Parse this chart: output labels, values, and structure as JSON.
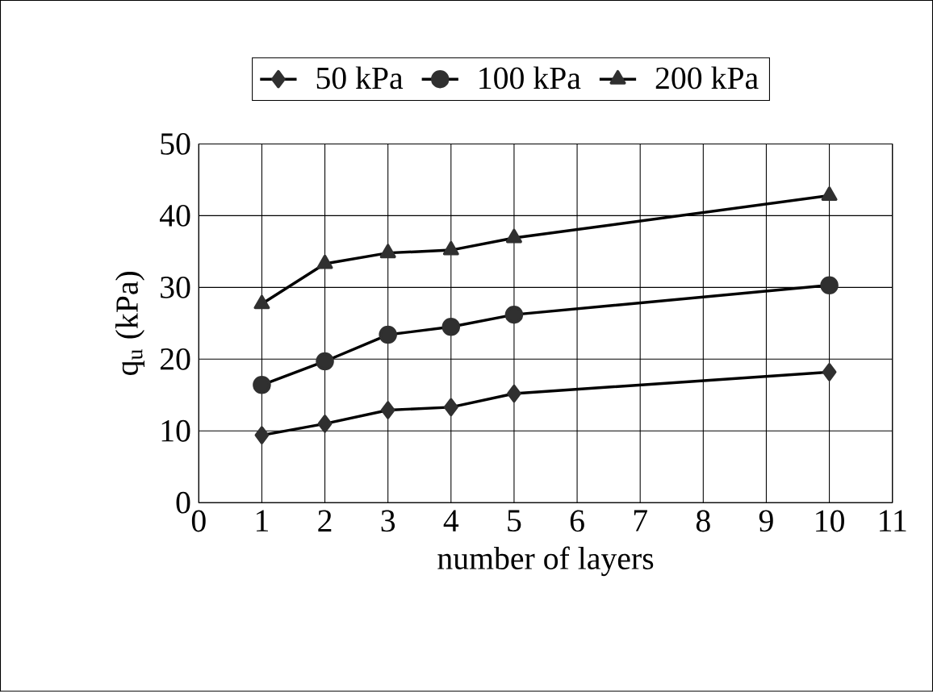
{
  "chart_data": {
    "type": "line",
    "xlabel": "number of layers",
    "ylabel": "q$_{u}$ (kPa)",
    "xlim": [
      0,
      11
    ],
    "xticks": [
      0,
      1,
      2,
      3,
      4,
      5,
      6,
      7,
      8,
      9,
      10,
      11
    ],
    "ylim": [
      0,
      50
    ],
    "yticks": [
      0,
      10,
      20,
      30,
      40,
      50
    ],
    "grid": true,
    "legend": "top",
    "line_style": "solid",
    "series": [
      {
        "name": "50 kPa",
        "color": "#303030",
        "marker": "diamond",
        "x": [
          1,
          2,
          3,
          4,
          5,
          10
        ],
        "values": [
          9.4,
          11.0,
          12.9,
          13.3,
          15.2,
          18.2
        ]
      },
      {
        "name": "100 kPa",
        "color": "#303030",
        "marker": "circle",
        "x": [
          1,
          2,
          3,
          4,
          5,
          10
        ],
        "values": [
          16.4,
          19.7,
          23.4,
          24.5,
          26.2,
          30.3
        ]
      },
      {
        "name": "200 kPa",
        "color": "#303030",
        "marker": "triangle",
        "x": [
          1,
          2,
          3,
          4,
          5,
          10
        ],
        "values": [
          27.7,
          33.3,
          34.8,
          35.2,
          36.9,
          42.8
        ]
      }
    ]
  }
}
